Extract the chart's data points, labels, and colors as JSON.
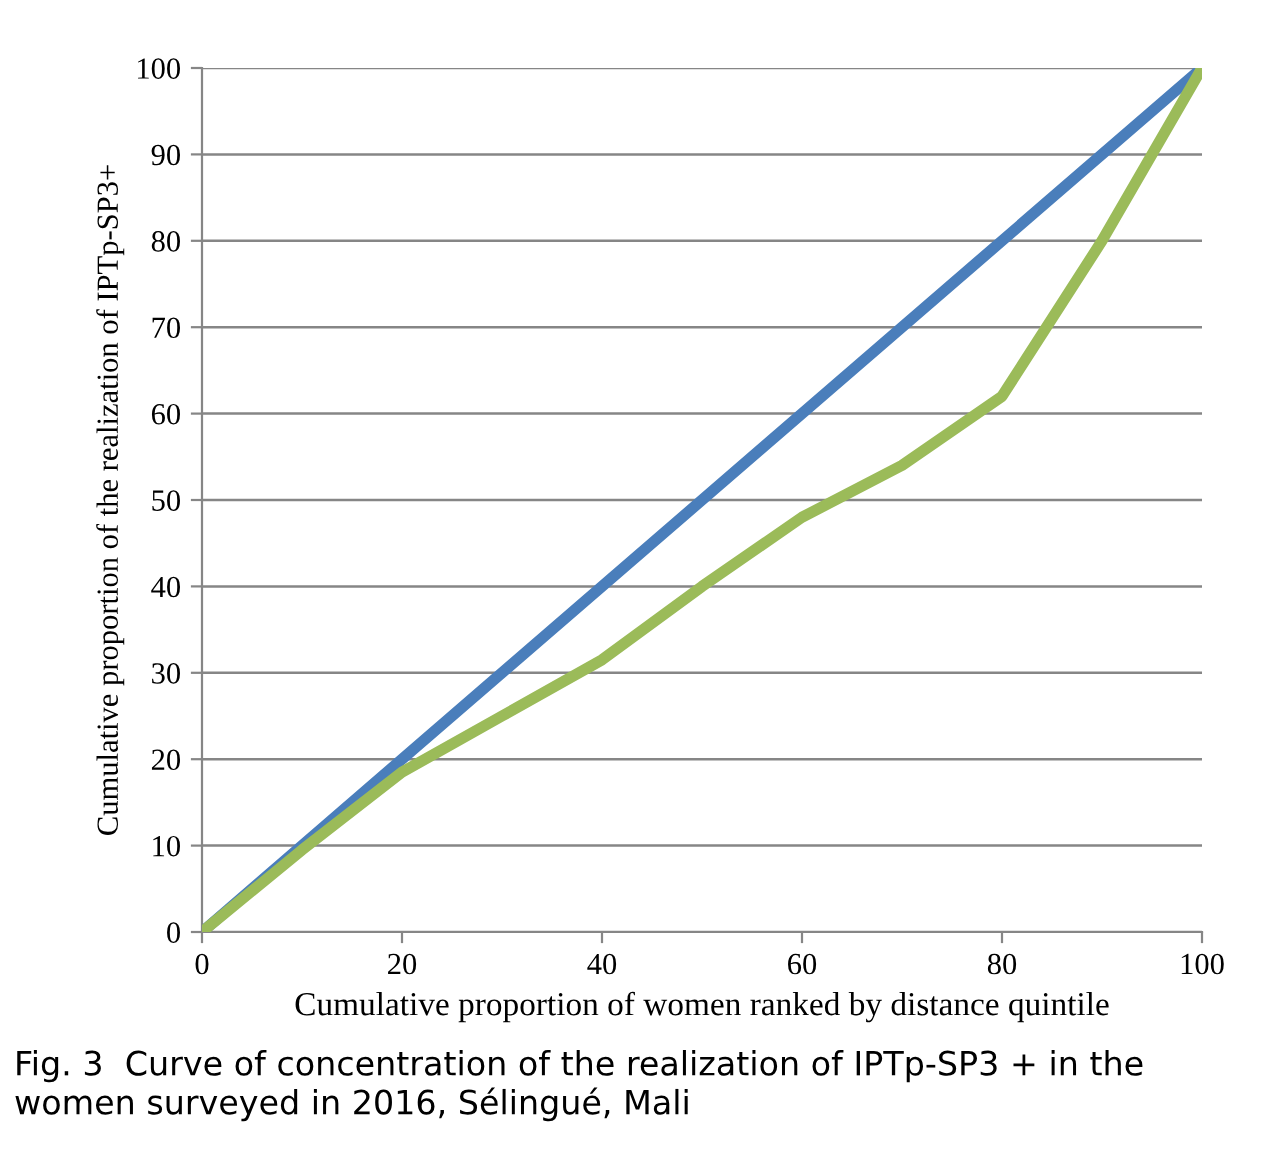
{
  "chart_data": {
    "type": "line",
    "xlabel": "Cumulative proportion of women ranked by distance quintile",
    "ylabel": "Cumulative proportion of the realization of IPTp-SP3+",
    "annotations": [
      "Fig. 3  Curve of concentration of the realization of IPTp-SP3 + in the women surveyed in 2016, Sélingué, Mali"
    ],
    "series": [
      {
        "color": "#4a7ebb",
        "x": [
          0,
          100
        ],
        "values": [
          0,
          100
        ]
      },
      {
        "color": "#9bbb59",
        "x": [
          0,
          10,
          20,
          30,
          40,
          50,
          60,
          70,
          80,
          90,
          100
        ],
        "values": [
          0,
          9.5,
          18.5,
          25,
          31.5,
          40,
          48,
          54,
          62,
          80,
          100
        ]
      }
    ],
    "xlim": [
      0,
      100
    ],
    "ylim": [
      0,
      100
    ],
    "xticks": [
      0,
      20,
      40,
      60,
      80,
      100
    ],
    "yticks": [
      0,
      10,
      20,
      30,
      40,
      50,
      60,
      70,
      80,
      90,
      100
    ],
    "grid": "y",
    "marker": "none",
    "line_style": "solid",
    "legend": false
  }
}
